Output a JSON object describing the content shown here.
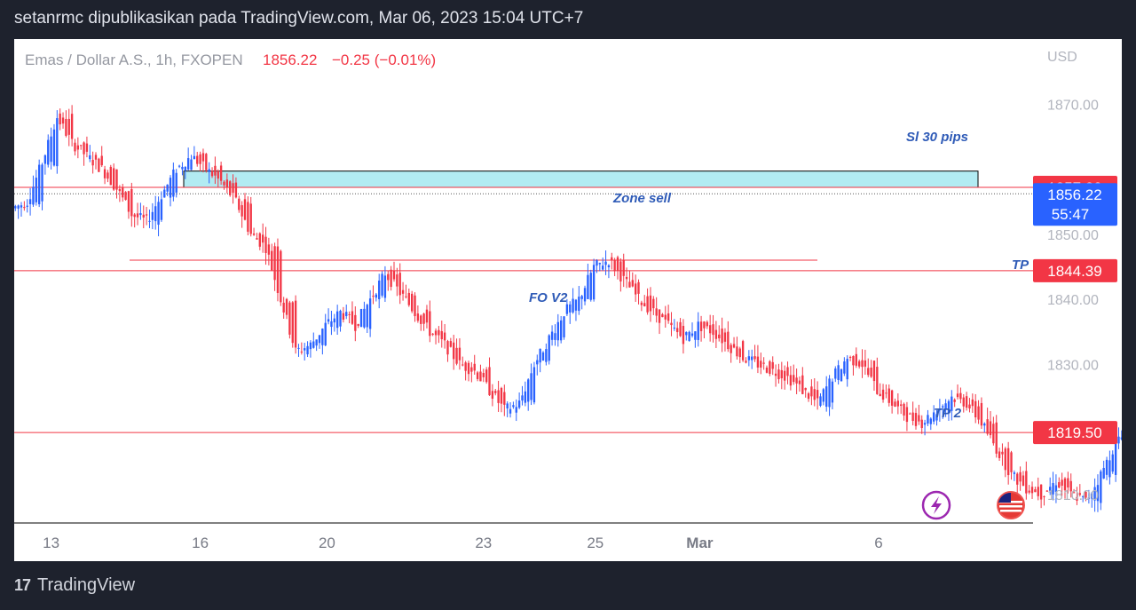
{
  "header": {
    "text": "setanrmc dipublikasikan pada TradingView.com, Mar 06, 2023 15:04 UTC+7"
  },
  "legend": {
    "symbol": "Emas / Dollar A.S., 1h, FXOPEN",
    "price": "1856.22",
    "change": "−0.25 (−0.01%)"
  },
  "axis": {
    "currency": "USD",
    "y_ticks": [
      {
        "value": 1870,
        "label": "1870.00"
      },
      {
        "value": 1850,
        "label": "1850.00"
      },
      {
        "value": 1840,
        "label": "1840.00"
      },
      {
        "value": 1830,
        "label": "1830.00"
      },
      {
        "value": 1810,
        "label": "1810.00"
      }
    ],
    "x_ticks": [
      {
        "slot": 2,
        "label": "13"
      },
      {
        "slot": 12,
        "label": "16"
      },
      {
        "slot": 20.5,
        "label": "20"
      },
      {
        "slot": 31,
        "label": "23"
      },
      {
        "slot": 38.5,
        "label": "25"
      },
      {
        "slot": 45.5,
        "label": "Mar"
      },
      {
        "slot": 57.5,
        "label": "6"
      }
    ]
  },
  "price_labels": {
    "sl": {
      "value": 1857.2,
      "text": "1857.20",
      "color": "#f23645"
    },
    "current": {
      "value": 1856.22,
      "text": "1856.22",
      "timer": "55:47",
      "color": "#2962ff"
    },
    "tp": {
      "value": 1844.39,
      "text": "1844.39",
      "color": "#f23645"
    },
    "tp2": {
      "value": 1819.5,
      "text": "1819.50",
      "color": "#f23645"
    }
  },
  "annotations": {
    "sl_pips": "Sl 30 pips",
    "zone_sell": "Zone sell",
    "fo_v2": "FO V2",
    "tp": "TP",
    "tp2": "TP 2"
  },
  "footer": {
    "logo": "17",
    "brand": "TradingView"
  },
  "icons": [
    "lightning-icon",
    "us-flag-icon"
  ],
  "chart_data": {
    "type": "candlestick",
    "title": "Emas / Dollar A.S., 1h, FXOPEN",
    "ylim": [
      1805.6,
      1880
    ],
    "zone_sell": {
      "low": 1857.2,
      "high": 1859.7
    },
    "fo_v2_level": 1846.0,
    "horizontal_lines": [
      1857.2,
      1844.39,
      1819.5
    ],
    "colors": {
      "up": "#2962ff",
      "down": "#f23645",
      "zone_fill": "#b2ebf2"
    },
    "close": [
      1855,
      1861,
      1868,
      1864,
      1862,
      1860,
      1857,
      1853,
      1852,
      1856,
      1860,
      1862,
      1860,
      1858,
      1855,
      1850,
      1848,
      1840,
      1832,
      1833,
      1836,
      1838,
      1836,
      1840,
      1844,
      1841,
      1838,
      1835,
      1833,
      1830,
      1829,
      1826,
      1823,
      1824,
      1830,
      1834,
      1838,
      1840,
      1845,
      1846,
      1843,
      1840,
      1838,
      1836,
      1834,
      1836,
      1835,
      1833,
      1831,
      1830,
      1829,
      1828,
      1826,
      1824,
      1828,
      1831,
      1830,
      1826,
      1824,
      1822,
      1821,
      1823,
      1825,
      1824,
      1821,
      1817,
      1813,
      1811,
      1810,
      1812,
      1810,
      1809,
      1813,
      1818,
      1820,
      1818,
      1816,
      1814,
      1810,
      1808,
      1816,
      1828,
      1831,
      1829,
      1833,
      1836,
      1840,
      1844,
      1843,
      1838,
      1835,
      1834,
      1836,
      1833,
      1831,
      1833,
      1836,
      1838,
      1840,
      1843,
      1846,
      1848,
      1846,
      1847,
      1852,
      1854,
      1855,
      1856.22
    ]
  }
}
